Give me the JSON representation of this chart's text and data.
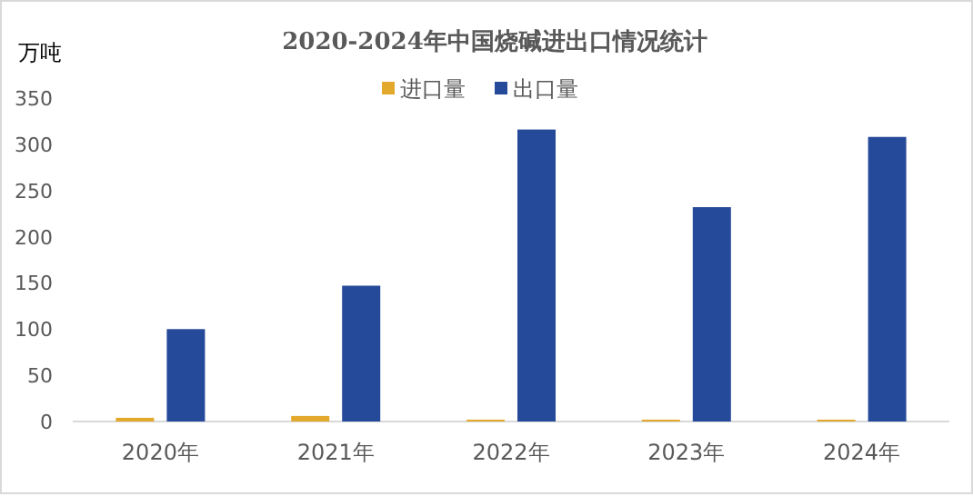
{
  "chart_data": {
    "type": "bar",
    "title": "2020-2024年中国烧碱进出口情况统计",
    "ylabel": "万吨",
    "categories": [
      "2020年",
      "2021年",
      "2022年",
      "2023年",
      "2024年"
    ],
    "series": [
      {
        "name": "进口量",
        "color": "#e3a92c",
        "values": [
          4,
          6,
          2,
          2,
          2
        ]
      },
      {
        "name": "出口量",
        "color": "#264a9a",
        "values": [
          100,
          147,
          316,
          232,
          308
        ]
      }
    ],
    "ylim": [
      0,
      350
    ],
    "yticks": [
      0,
      50,
      100,
      150,
      200,
      250,
      300,
      350
    ],
    "grid": false,
    "legend": "top"
  }
}
